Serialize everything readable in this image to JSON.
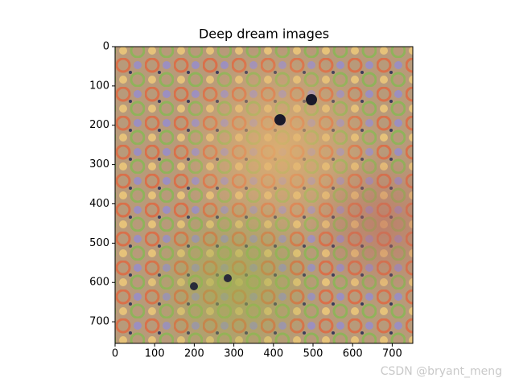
{
  "chart_data": {
    "type": "image",
    "title": "Deep dream images",
    "xlim": [
      0,
      752
    ],
    "ylim": [
      0,
      755
    ],
    "y_inverted": true,
    "xticks": [
      0,
      100,
      200,
      300,
      400,
      500,
      600,
      700
    ],
    "yticks": [
      0,
      100,
      200,
      300,
      400,
      500,
      600,
      700
    ]
  },
  "watermark": "CSDN @bryant_meng"
}
